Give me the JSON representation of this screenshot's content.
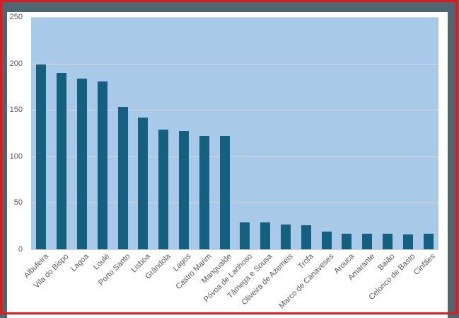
{
  "colors": {
    "bar": "#15607e",
    "plot_background": "#a8c9e8",
    "gridline": "#d6dbe0",
    "label_text": "#595959",
    "frame_slate": "#4e6671",
    "highlight_red": "#dd1b1f"
  },
  "chart_data": {
    "type": "bar",
    "title": "",
    "xlabel": "",
    "ylabel": "",
    "categories": [
      "Albufeira",
      "Vila do Bispo",
      "Lagoa",
      "Loulé",
      "Porto Santo",
      "Lisboa",
      "Grândola",
      "Lagos",
      "Castro Marim",
      "Mangualde",
      "Póvoa de Lanhoso",
      "Tâmega e Sousa",
      "Oliveira de Azeméis",
      "Trofa",
      "Marco de Canaveses",
      "Arouca",
      "Amarante",
      "Baião",
      "Celorico de Basto",
      "Cinfães"
    ],
    "values": [
      199,
      190,
      184,
      181,
      153,
      142,
      129,
      127,
      122,
      122,
      29,
      29,
      27,
      26,
      19,
      17,
      17,
      17,
      16,
      17
    ],
    "ylim": [
      0,
      250
    ],
    "yticks": [
      0,
      50,
      100,
      150,
      200,
      250
    ],
    "grid": true,
    "legend_position": "none",
    "x_tick_rotation_deg": 45
  }
}
